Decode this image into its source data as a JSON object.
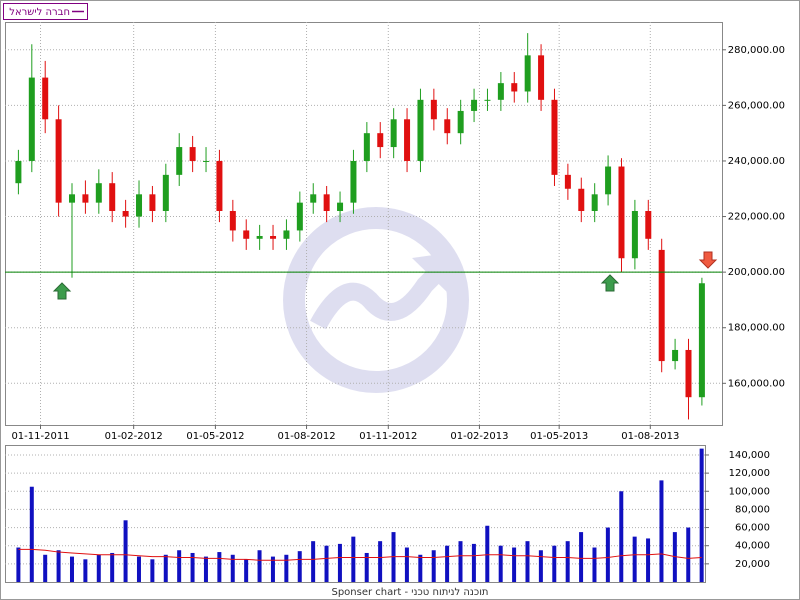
{
  "footer": "Sponser chart - תוכנה לניתוח טכני",
  "chart_data": [
    {
      "type": "candlestick",
      "name": "חברה לישראל",
      "legend_color": "#800080",
      "up_color": "#1f9e1f",
      "down_color": "#e01010",
      "x": [
        0,
        2,
        4,
        6,
        8,
        10,
        12,
        14,
        16,
        18,
        20,
        22,
        24,
        26,
        28,
        30,
        32,
        34,
        36,
        38,
        40,
        42,
        44,
        46,
        48,
        50,
        52,
        54,
        56,
        58,
        60,
        62,
        64,
        66,
        68,
        70,
        72,
        74,
        76,
        78,
        80,
        82,
        84,
        86,
        88,
        90,
        92,
        94,
        96,
        98,
        100,
        102
      ],
      "open": [
        232000,
        240000,
        270000,
        255000,
        225000,
        228000,
        225000,
        232000,
        222000,
        220000,
        228000,
        222000,
        235000,
        245000,
        240000,
        240000,
        222000,
        215000,
        212000,
        213000,
        212000,
        215000,
        225000,
        228000,
        222000,
        225000,
        240000,
        250000,
        245000,
        255000,
        240000,
        262000,
        255000,
        250000,
        258000,
        262000,
        262000,
        268000,
        265000,
        278000,
        262000,
        235000,
        230000,
        222000,
        228000,
        238000,
        205000,
        222000,
        208000,
        168000,
        172000,
        155000
      ],
      "high": [
        244000,
        282000,
        276000,
        260000,
        232000,
        233000,
        237000,
        236000,
        226000,
        233000,
        231000,
        239000,
        250000,
        249000,
        245000,
        244000,
        226000,
        219000,
        217000,
        217000,
        219000,
        229000,
        232000,
        231000,
        229000,
        244000,
        254000,
        254000,
        259000,
        259000,
        266000,
        266000,
        259000,
        262000,
        266000,
        266000,
        272000,
        272000,
        286000,
        282000,
        266000,
        239000,
        234000,
        232000,
        242000,
        241000,
        226000,
        226000,
        212000,
        176000,
        176000,
        198000
      ],
      "low": [
        228000,
        236000,
        250000,
        220000,
        198000,
        221000,
        221000,
        218000,
        216000,
        216000,
        218000,
        218000,
        231000,
        236000,
        236000,
        218000,
        211000,
        208000,
        208000,
        208000,
        208000,
        211000,
        221000,
        218000,
        218000,
        221000,
        236000,
        241000,
        241000,
        236000,
        236000,
        251000,
        246000,
        246000,
        254000,
        258000,
        258000,
        261000,
        261000,
        258000,
        231000,
        226000,
        218000,
        218000,
        224000,
        200000,
        201000,
        208000,
        164000,
        165000,
        147000,
        152000
      ],
      "close": [
        240000,
        270000,
        255000,
        225000,
        228000,
        225000,
        232000,
        222000,
        220000,
        228000,
        222000,
        235000,
        245000,
        240000,
        240000,
        222000,
        215000,
        212000,
        213000,
        212000,
        215000,
        225000,
        228000,
        222000,
        225000,
        240000,
        250000,
        245000,
        255000,
        240000,
        262000,
        255000,
        250000,
        258000,
        262000,
        262000,
        268000,
        265000,
        278000,
        262000,
        235000,
        230000,
        222000,
        228000,
        238000,
        205000,
        222000,
        212000,
        168000,
        172000,
        155000,
        196000
      ],
      "xlim": [
        -2,
        105
      ],
      "xticks": [
        {
          "value": 3.3,
          "label": "01-11-2011"
        },
        {
          "value": 17.2,
          "label": "01-02-2012"
        },
        {
          "value": 29.4,
          "label": "01-05-2012"
        },
        {
          "value": 43.0,
          "label": "01-08-2012"
        },
        {
          "value": 55.2,
          "label": "01-11-2012"
        },
        {
          "value": 68.8,
          "label": "01-02-2013"
        },
        {
          "value": 80.7,
          "label": "01-05-2013"
        },
        {
          "value": 94.3,
          "label": "01-08-2013"
        }
      ],
      "ylim": [
        145000,
        290000
      ],
      "yticks": [
        {
          "value": 160000,
          "label": "160,000.00"
        },
        {
          "value": 180000,
          "label": "180,000.00"
        },
        {
          "value": 200000,
          "label": "200,000.00"
        },
        {
          "value": 220000,
          "label": "220,000.00"
        },
        {
          "value": 240000,
          "label": "240,000.00"
        },
        {
          "value": 260000,
          "label": "260,000.00"
        },
        {
          "value": 280000,
          "label": "280,000.00"
        }
      ],
      "hline": 200000,
      "hline_color": "#008000",
      "grid": true
    },
    {
      "type": "bar",
      "color": "#1010c0",
      "ma_color": "#e01010",
      "x": [
        0,
        2,
        4,
        6,
        8,
        10,
        12,
        14,
        16,
        18,
        20,
        22,
        24,
        26,
        28,
        30,
        32,
        34,
        36,
        38,
        40,
        42,
        44,
        46,
        48,
        50,
        52,
        54,
        56,
        58,
        60,
        62,
        64,
        66,
        68,
        70,
        72,
        74,
        76,
        78,
        80,
        82,
        84,
        86,
        88,
        90,
        92,
        94,
        96,
        98,
        100,
        102
      ],
      "values": [
        38000,
        105000,
        30000,
        35000,
        28000,
        25000,
        30000,
        32000,
        68000,
        28000,
        25000,
        30000,
        35000,
        32000,
        28000,
        33000,
        30000,
        25000,
        35000,
        28000,
        30000,
        34000,
        45000,
        40000,
        42000,
        50000,
        32000,
        45000,
        55000,
        38000,
        30000,
        35000,
        40000,
        45000,
        42000,
        62000,
        40000,
        38000,
        45000,
        35000,
        40000,
        45000,
        55000,
        38000,
        60000,
        100000,
        50000,
        48000,
        112000,
        55000,
        60000,
        147000
      ],
      "ma_values": [
        36000,
        36000,
        35000,
        33000,
        32000,
        31000,
        30000,
        30000,
        30000,
        29000,
        28000,
        28000,
        27000,
        27000,
        26000,
        26000,
        25000,
        25000,
        24000,
        24000,
        24000,
        25000,
        25000,
        26000,
        27000,
        27000,
        27000,
        27000,
        28000,
        28000,
        27000,
        27000,
        28000,
        29000,
        29000,
        30000,
        30000,
        29000,
        29000,
        28000,
        27000,
        27000,
        26000,
        26000,
        27000,
        29000,
        30000,
        30000,
        31000,
        28000,
        26000,
        27000
      ],
      "xlim": [
        -2,
        102.5
      ],
      "ylim": [
        0,
        151000
      ],
      "yticks": [
        {
          "value": 20000,
          "label": "20,000"
        },
        {
          "value": 40000,
          "label": "40,000"
        },
        {
          "value": 60000,
          "label": "60,000"
        },
        {
          "value": 80000,
          "label": "80,000"
        },
        {
          "value": 100000,
          "label": "100,000"
        },
        {
          "value": 120000,
          "label": "120,000"
        },
        {
          "value": 140000,
          "label": "140,000"
        }
      ],
      "grid": true
    }
  ]
}
